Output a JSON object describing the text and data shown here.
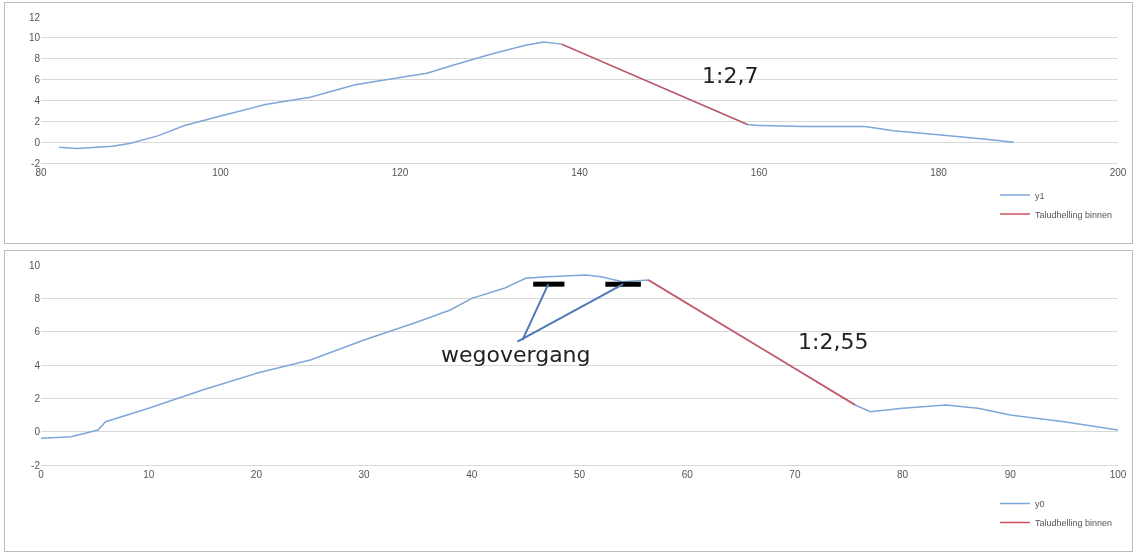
{
  "chart_data": [
    {
      "type": "line",
      "xlim": [
        80,
        200
      ],
      "xticks": [
        80,
        100,
        120,
        140,
        160,
        180,
        200
      ],
      "ylim": [
        -2,
        12
      ],
      "yticks": [
        -2,
        0,
        2,
        4,
        6,
        8,
        10,
        12
      ],
      "grid": "y",
      "legend": "bottom right",
      "marker": "none",
      "line_style": "solid",
      "annotations": [
        "1:2,7"
      ],
      "series": [
        {
          "name": "y1",
          "color": "#7ea6d8",
          "x": [
            82,
            84,
            88,
            90,
            93,
            96,
            100,
            105,
            110,
            115,
            120,
            123,
            126,
            130,
            134,
            136,
            138,
            158.7,
            160,
            165,
            171.8,
            175,
            180,
            185,
            188.4
          ],
          "values": [
            -0.5,
            -0.6,
            -0.4,
            -0.1,
            0.6,
            1.6,
            2.5,
            3.6,
            4.3,
            5.5,
            6.2,
            6.6,
            7.4,
            8.4,
            9.3,
            9.6,
            9.4,
            1.7,
            1.6,
            1.5,
            1.5,
            1.1,
            0.7,
            0.3,
            0
          ]
        },
        {
          "name": "Taludhelling binnen",
          "color": "#d0535c",
          "x": [
            138,
            158.7
          ],
          "values": [
            9.4,
            1.7
          ]
        }
      ]
    },
    {
      "type": "line",
      "xlim": [
        0,
        100
      ],
      "xticks": [
        0,
        10,
        20,
        30,
        40,
        50,
        60,
        70,
        80,
        90,
        100
      ],
      "ylim": [
        -2,
        10
      ],
      "yticks": [
        -2,
        0,
        2,
        4,
        6,
        8,
        10
      ],
      "grid": "y",
      "legend": "bottom right",
      "marker": "none",
      "line_style": "solid",
      "annotations": [
        {
          "text": "wegovergang",
          "x": 47.1,
          "y": 8.85
        },
        "1:2,55"
      ],
      "series": [
        {
          "name": "y0",
          "color": "#7ea6d8",
          "x": [
            0,
            2.8,
            5.3,
            6,
            10,
            15,
            20,
            25,
            30,
            35,
            38,
            40,
            43,
            45,
            47,
            50.6,
            52,
            54,
            56.4,
            75.6,
            77,
            80,
            84,
            87,
            90,
            95,
            100
          ],
          "values": [
            -0.4,
            -0.3,
            0.1,
            0.6,
            1.4,
            2.5,
            3.5,
            4.3,
            5.5,
            6.6,
            7.3,
            8.0,
            8.6,
            9.2,
            9.3,
            9.4,
            9.3,
            9.0,
            9.1,
            1.6,
            1.2,
            1.4,
            1.6,
            1.4,
            1.0,
            0.6,
            0.1
          ]
        },
        {
          "name": "Taludhelling binnen",
          "color": "#d0535c",
          "x": [
            56.4,
            75.6
          ],
          "values": [
            9.1,
            1.6
          ]
        },
        {
          "color": "#000000",
          "x": [
            45.7,
            48.6,
            null,
            52.4,
            55.7
          ],
          "values": [
            8.85,
            8.85,
            null,
            8.85,
            8.85
          ]
        }
      ]
    }
  ]
}
